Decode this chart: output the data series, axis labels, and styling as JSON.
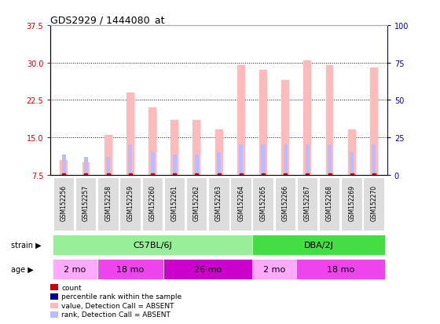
{
  "title": "GDS2929 / 1444080_at",
  "samples": [
    "GSM152256",
    "GSM152257",
    "GSM152258",
    "GSM152259",
    "GSM152260",
    "GSM152261",
    "GSM152262",
    "GSM152263",
    "GSM152264",
    "GSM152265",
    "GSM152266",
    "GSM152267",
    "GSM152268",
    "GSM152269",
    "GSM152270"
  ],
  "count_values": [
    10.5,
    10.0,
    15.5,
    24.0,
    21.0,
    18.5,
    18.5,
    16.5,
    29.5,
    28.5,
    26.5,
    30.5,
    29.5,
    16.5,
    29.0
  ],
  "rank_values": [
    11.5,
    11.0,
    11.0,
    13.5,
    12.0,
    11.5,
    11.5,
    12.0,
    13.5,
    13.5,
    13.5,
    13.5,
    13.5,
    12.0,
    13.5
  ],
  "ylim_left": [
    7.5,
    37.5
  ],
  "ylim_right": [
    0,
    100
  ],
  "yticks_left": [
    7.5,
    15.0,
    22.5,
    30.0,
    37.5
  ],
  "yticks_right": [
    0,
    25,
    50,
    75,
    100
  ],
  "color_count": "#cc0000",
  "color_rank": "#000099",
  "color_absent_count": "#ffbbbb",
  "color_absent_rank": "#bbbbff",
  "strain_color_1": "#99ee99",
  "strain_color_2": "#44dd44",
  "age_colors": [
    "#ffaaff",
    "#ee44ee",
    "#cc00cc",
    "#ffaaff",
    "#ee44ee"
  ],
  "age_labels": [
    "2 mo",
    "18 mo",
    "26 mo",
    "2 mo",
    "18 mo"
  ],
  "age_starts": [
    0,
    2,
    5,
    9,
    11
  ],
  "age_ends": [
    2,
    5,
    9,
    11,
    15
  ],
  "background_color": "#ffffff",
  "plot_bg_color": "#ffffff",
  "grid_color": "#000000",
  "ybase": 7.5,
  "bar_width": 0.35,
  "rank_bar_width": 0.18
}
